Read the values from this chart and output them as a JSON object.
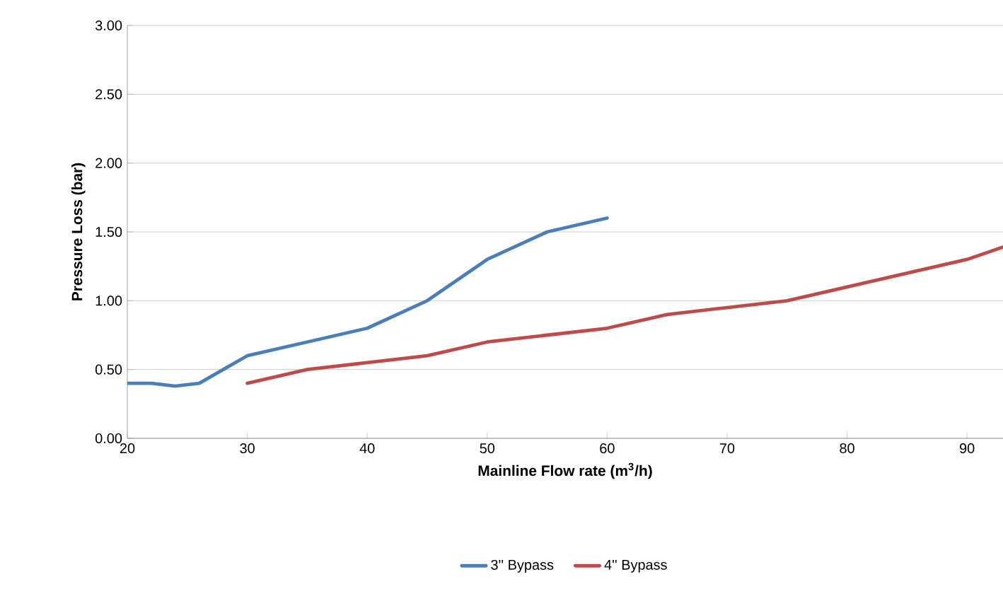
{
  "chart_data": {
    "type": "line",
    "xlabel": "Mainline Flow rate (m$^{3}$/h)",
    "ylabel": "Pressure Loss (bar)",
    "xlim": [
      20,
      93
    ],
    "xticks": [
      20,
      30,
      40,
      50,
      60,
      70,
      80,
      90
    ],
    "ylim": [
      0,
      3
    ],
    "yticks": [
      {
        "value": 0,
        "label": "0.00"
      },
      {
        "value": 0.5,
        "label": "0.50"
      },
      {
        "value": 1,
        "label": "1.00"
      },
      {
        "value": 1.5,
        "label": "1.50"
      },
      {
        "value": 2,
        "label": "2.00"
      },
      {
        "value": 2.5,
        "label": "2.50"
      },
      {
        "value": 3,
        "label": "3.00"
      }
    ],
    "grid": "y",
    "legend": "bottom",
    "marker": "none",
    "line_style": "solid",
    "series": [
      {
        "name": "3'' Bypass",
        "color": "#4a7ebb",
        "x": [
          20,
          22,
          24,
          26,
          28,
          30,
          35,
          40,
          45,
          50,
          55,
          60
        ],
        "values": [
          0.4,
          0.4,
          0.38,
          0.4,
          0.5,
          0.6,
          0.7,
          0.8,
          1.0,
          1.3,
          1.5,
          1.6
        ]
      },
      {
        "name": "4'' Bypass",
        "color": "#be4b48",
        "x": [
          30,
          35,
          40,
          45,
          50,
          55,
          60,
          65,
          70,
          75,
          80,
          85,
          90,
          93
        ],
        "values": [
          0.4,
          0.5,
          0.55,
          0.6,
          0.7,
          0.75,
          0.8,
          0.9,
          0.95,
          1.0,
          1.1,
          1.2,
          1.3,
          1.39
        ]
      }
    ]
  }
}
